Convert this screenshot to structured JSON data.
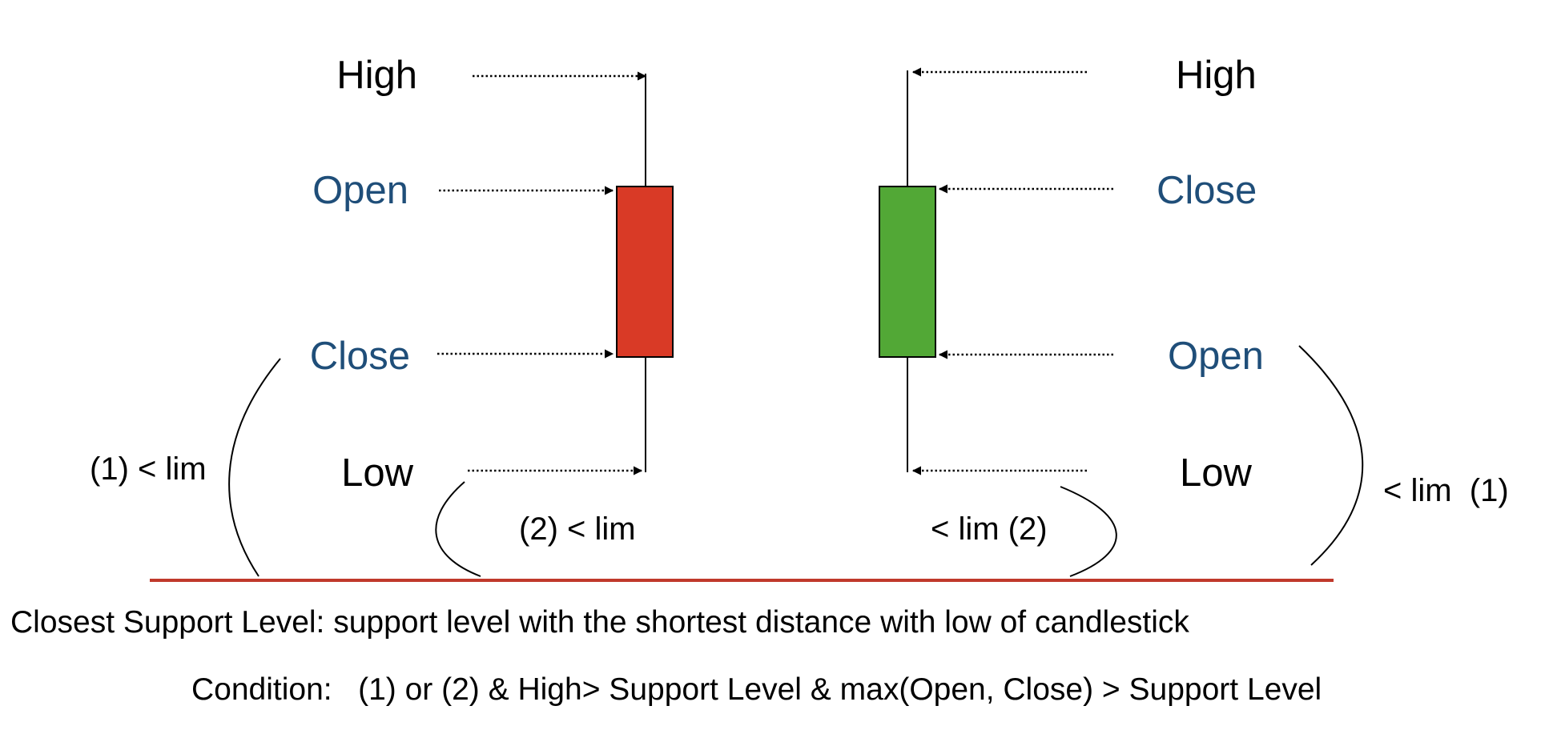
{
  "colors": {
    "label_blue": "#1f4e79",
    "label_black": "#000000",
    "bearish_body": "#d93a26",
    "bullish_body": "#52a836",
    "support_line": "#c0392b"
  },
  "bearish_candle": {
    "high_label": "High",
    "open_label": "Open",
    "close_label": "Close",
    "low_label": "Low",
    "cond1_label": "(1) < lim",
    "cond2_label": "(2) < lim"
  },
  "bullish_candle": {
    "high_label": "High",
    "close_label": "Close",
    "open_label": "Open",
    "low_label": "Low",
    "cond1_label": "< lim  (1)",
    "cond2_label": "< lim (2)"
  },
  "support_line_caption": "Closest Support Level: support level with the shortest distance with low of candlestick",
  "condition_text": "Condition:   (1) or (2) & High> Support Level & max(Open, Close) > Support Level"
}
